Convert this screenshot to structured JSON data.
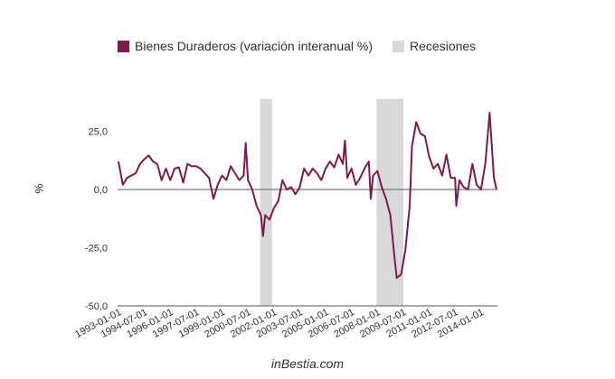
{
  "chart_data": {
    "type": "line",
    "title": "",
    "xlabel": "",
    "ylabel": "%",
    "ylim": [
      -50,
      35
    ],
    "yticks": [
      25,
      0,
      -25,
      -50
    ],
    "ytick_labels": [
      "25,0",
      "0,0",
      "-25,0",
      "-50,0"
    ],
    "xlim": [
      1993.0,
      2014.9
    ],
    "xtick_labels": [
      "1993-01-01",
      "1994-07-01",
      "1996-01-01",
      "1997-07-01",
      "1999-01-01",
      "2000-07-01",
      "2002-01-01",
      "2003-07-01",
      "2005-01-01",
      "2006-07-01",
      "2008-01-01",
      "2009-07-01",
      "2011-01-01",
      "2012-07-01",
      "2014-01-01"
    ],
    "legend": {
      "position": "top",
      "entries": [
        "Bienes Duraderos (variación interanual %)",
        "Recesiones"
      ]
    },
    "series": [
      {
        "name": "Bienes Duraderos (variación interanual %)",
        "color": "#7b1c4a",
        "x": [
          1993.0,
          1993.25,
          1993.5,
          1993.75,
          1994.0,
          1994.25,
          1994.5,
          1994.75,
          1995.0,
          1995.25,
          1995.5,
          1995.75,
          1996.0,
          1996.25,
          1996.5,
          1996.75,
          1997.0,
          1997.25,
          1997.5,
          1997.75,
          1998.0,
          1998.25,
          1998.5,
          1998.75,
          1999.0,
          1999.25,
          1999.5,
          1999.75,
          2000.0,
          2000.25,
          2000.37,
          2000.5,
          2000.75,
          2001.0,
          2001.25,
          2001.37,
          2001.5,
          2001.75,
          2002.0,
          2002.25,
          2002.5,
          2002.75,
          2003.0,
          2003.25,
          2003.5,
          2003.75,
          2004.0,
          2004.25,
          2004.5,
          2004.75,
          2005.0,
          2005.25,
          2005.5,
          2005.75,
          2006.0,
          2006.12,
          2006.25,
          2006.5,
          2006.75,
          2007.0,
          2007.25,
          2007.5,
          2007.62,
          2007.75,
          2008.0,
          2008.25,
          2008.5,
          2008.75,
          2009.0,
          2009.12,
          2009.37,
          2009.62,
          2009.87,
          2010.0,
          2010.25,
          2010.5,
          2010.75,
          2011.0,
          2011.25,
          2011.5,
          2011.75,
          2012.0,
          2012.25,
          2012.5,
          2012.57,
          2012.75,
          2013.0,
          2013.25,
          2013.5,
          2013.75,
          2014.0,
          2014.25,
          2014.5,
          2014.75,
          2014.9
        ],
        "values": [
          12,
          2,
          5,
          6,
          7,
          11,
          13,
          14.6,
          12,
          11,
          4,
          9,
          4,
          9,
          9.5,
          3,
          11,
          10,
          10,
          9,
          7,
          5,
          -4,
          2,
          6,
          4,
          10,
          7,
          4,
          6,
          20,
          4,
          0,
          -7,
          -11,
          -20,
          -11,
          -13,
          -8,
          -5,
          4,
          0,
          1,
          -2,
          1,
          9,
          6,
          9,
          7,
          4,
          9,
          12,
          9.5,
          15,
          11,
          21,
          5,
          9,
          2,
          5,
          9,
          12,
          -4,
          6,
          8,
          1,
          -4,
          -11,
          -30,
          -38,
          -36.5,
          -26,
          -7,
          18.5,
          29,
          24,
          23,
          14,
          9,
          11,
          6,
          15,
          5,
          5,
          -7,
          4,
          1,
          0,
          11,
          2,
          0,
          11,
          33,
          5,
          0
        ]
      }
    ],
    "recessions": [
      {
        "start": 2001.2,
        "end": 2001.9
      },
      {
        "start": 2007.95,
        "end": 2009.5
      }
    ],
    "recession_color": "#d9d9d9"
  },
  "watermark": "inBestia.com"
}
